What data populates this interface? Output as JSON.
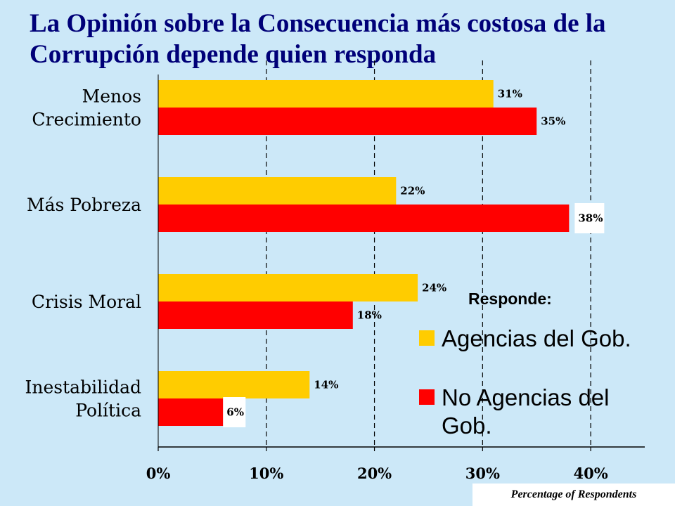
{
  "title": "La Opinión sobre la Consecuencia más costosa de la Corrupción depende quien responda",
  "colors": {
    "background": "#cce8f8",
    "title": "#000078",
    "series_gov": "#ffcc00",
    "series_nongov": "#ff0000"
  },
  "legend": {
    "title": "Responde:",
    "items": [
      "Agencias del Gob.",
      "No Agencias del Gob."
    ]
  },
  "footnote": "Percentage of Respondents",
  "chart_data": {
    "type": "bar",
    "orientation": "horizontal",
    "categories": [
      [
        "Menos",
        "Crecimiento"
      ],
      [
        "Más Pobreza"
      ],
      [
        "Crisis Moral"
      ],
      [
        "Inestabilidad",
        "Política"
      ]
    ],
    "series": [
      {
        "name": "Agencias del Gob.",
        "values": [
          31,
          22,
          24,
          14
        ],
        "labels": [
          "31%",
          "22%",
          "24%",
          "14%"
        ]
      },
      {
        "name": "No Agencias del Gob.",
        "values": [
          35,
          38,
          18,
          6
        ],
        "labels": [
          "35%",
          "38%",
          "18%",
          "6%"
        ]
      }
    ],
    "xlim": [
      0,
      45
    ],
    "xticks": [
      0,
      10,
      20,
      30,
      40
    ],
    "xtick_labels": [
      "0%",
      "10%",
      "20%",
      "30%",
      "40%"
    ],
    "grid": "vertical dashed",
    "legend_position": "bottom-right",
    "xlabel": "",
    "ylabel": ""
  }
}
